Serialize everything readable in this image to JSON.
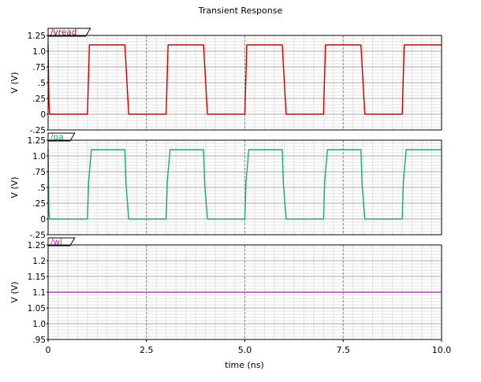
{
  "figure": {
    "title": "Transient Response",
    "xlabel": "time (ns)",
    "xlim": [
      0,
      10
    ],
    "x_major_ticks": [
      0,
      2.5,
      5.0,
      7.5,
      10.0
    ],
    "x_tick_labels": [
      "0",
      "2.5",
      "5.0",
      "7.5",
      "10.0"
    ],
    "x_minor_step": 0.25,
    "grid": true
  },
  "chart_data": [
    {
      "type": "line",
      "title": "",
      "ylabel": "V (V)",
      "xlabel": "",
      "ylim": [
        -0.25,
        1.25
      ],
      "y_major_ticks": [
        -0.25,
        0,
        0.25,
        0.5,
        0.75,
        1.0,
        1.25
      ],
      "y_tick_labels": [
        "-.25",
        "0",
        ".25",
        ".5",
        ".75",
        "1.0",
        "1.25"
      ],
      "legend": "top-left",
      "series": [
        {
          "name": "/vread",
          "color": "#cc0000",
          "x": [
            0,
            0.02,
            0.04,
            1.0,
            1.05,
            1.95,
            2.0,
            2.05,
            3.0,
            3.05,
            3.95,
            4.0,
            4.05,
            5.0,
            5.05,
            5.95,
            6.0,
            6.05,
            7.0,
            7.05,
            7.95,
            8.0,
            8.05,
            9.0,
            9.05,
            10.0
          ],
          "y": [
            1.1,
            0.2,
            0,
            0,
            1.1,
            1.1,
            0.55,
            0,
            0,
            1.1,
            1.1,
            0.55,
            0,
            0,
            1.1,
            1.1,
            0.55,
            0,
            0,
            1.1,
            1.1,
            0.55,
            0,
            0,
            1.1,
            1.1
          ]
        }
      ]
    },
    {
      "type": "line",
      "title": "",
      "ylabel": "V (V)",
      "xlabel": "",
      "ylim": [
        -0.25,
        1.25
      ],
      "y_major_ticks": [
        -0.25,
        0,
        0.25,
        0.5,
        0.75,
        1.0,
        1.25
      ],
      "y_tick_labels": [
        "-.25",
        "0",
        ".25",
        ".5",
        ".75",
        "1.0",
        "1.25"
      ],
      "legend": "top-left",
      "series": [
        {
          "name": "/qa",
          "color": "#1aa87a",
          "x": [
            0,
            0.02,
            0.04,
            1.0,
            1.03,
            1.1,
            1.95,
            1.98,
            2.05,
            3.0,
            3.03,
            3.1,
            3.95,
            3.98,
            4.05,
            5.0,
            5.03,
            5.1,
            5.95,
            5.98,
            6.05,
            7.0,
            7.03,
            7.1,
            7.95,
            7.98,
            8.05,
            9.0,
            9.03,
            9.1,
            10.0
          ],
          "y": [
            1.1,
            0.1,
            0,
            0,
            0.6,
            1.1,
            1.1,
            0.55,
            0,
            0,
            0.6,
            1.1,
            1.1,
            0.55,
            0,
            0,
            0.6,
            1.1,
            1.1,
            0.55,
            0,
            0,
            0.6,
            1.1,
            1.1,
            0.55,
            0,
            0,
            0.6,
            1.1,
            1.1
          ]
        }
      ]
    },
    {
      "type": "line",
      "title": "",
      "ylabel": "V (V)",
      "xlabel": "time (ns)",
      "ylim": [
        0.95,
        1.25
      ],
      "y_major_ticks": [
        0.95,
        1.0,
        1.05,
        1.1,
        1.15,
        1.2,
        1.25
      ],
      "y_tick_labels": [
        ".95",
        "1.0",
        "1.05",
        "1.1",
        "1.15",
        "1.2",
        "1.25"
      ],
      "legend": "top-left",
      "series": [
        {
          "name": "/wl",
          "color": "#cc33cc",
          "x": [
            0,
            10.0
          ],
          "y": [
            1.1,
            1.1
          ]
        }
      ]
    }
  ]
}
